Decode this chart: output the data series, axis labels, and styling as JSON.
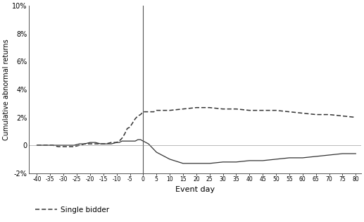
{
  "xlabel": "Event day",
  "ylabel": "Cumulative abnormal returns",
  "ylim": [
    -0.02,
    0.1
  ],
  "yticks": [
    -0.02,
    0.0,
    0.02,
    0.04,
    0.06,
    0.08,
    0.1
  ],
  "ytick_labels": [
    "-2%",
    "0",
    "2%",
    "4%",
    "6%",
    "8%",
    "10%"
  ],
  "vline_x": 0,
  "background_color": "#ffffff",
  "legend_label_dashed": "Single bidder",
  "x_tick_pre": [
    -40,
    -35,
    -30,
    -25,
    -20,
    -15,
    -10,
    -5
  ],
  "x_tick_post": [
    5,
    10,
    15,
    20,
    25,
    30,
    35,
    40,
    45,
    50,
    55,
    60,
    65,
    70,
    75,
    80
  ],
  "single_bidder_x": [
    -40,
    -38,
    -36,
    -34,
    -32,
    -30,
    -28,
    -26,
    -24,
    -22,
    -20,
    -18,
    -16,
    -14,
    -12,
    -10,
    -9,
    -8,
    -7,
    -6,
    -5,
    -4,
    -3,
    -2,
    -1,
    0,
    1,
    2,
    3,
    4,
    5,
    10,
    15,
    20,
    25,
    30,
    35,
    40,
    45,
    50,
    55,
    60,
    65,
    70,
    75,
    80
  ],
  "single_bidder_y": [
    0.0,
    0.0,
    0.0,
    0.0,
    -0.001,
    -0.001,
    -0.001,
    -0.001,
    0.0,
    0.001,
    0.001,
    0.001,
    0.001,
    0.001,
    0.002,
    0.002,
    0.003,
    0.005,
    0.008,
    0.012,
    0.013,
    0.016,
    0.019,
    0.021,
    0.022,
    0.024,
    0.024,
    0.024,
    0.024,
    0.024,
    0.025,
    0.025,
    0.026,
    0.027,
    0.027,
    0.026,
    0.026,
    0.025,
    0.025,
    0.025,
    0.024,
    0.023,
    0.022,
    0.022,
    0.021,
    0.02
  ],
  "multiple_bidder_x": [
    -40,
    -38,
    -36,
    -34,
    -32,
    -30,
    -28,
    -26,
    -24,
    -22,
    -20,
    -18,
    -16,
    -14,
    -12,
    -10,
    -9,
    -8,
    -7,
    -6,
    -5,
    -4,
    -3,
    -2,
    -1,
    0,
    1,
    2,
    3,
    4,
    5,
    10,
    15,
    20,
    25,
    30,
    35,
    40,
    45,
    50,
    55,
    60,
    65,
    70,
    75,
    80
  ],
  "multiple_bidder_y": [
    0.0,
    0.0,
    0.0,
    0.0,
    0.0,
    0.0,
    0.0,
    0.0,
    0.001,
    0.001,
    0.002,
    0.002,
    0.001,
    0.001,
    0.001,
    0.002,
    0.002,
    0.003,
    0.003,
    0.003,
    0.003,
    0.003,
    0.003,
    0.004,
    0.004,
    0.003,
    0.002,
    0.001,
    -0.001,
    -0.003,
    -0.005,
    -0.01,
    -0.013,
    -0.013,
    -0.013,
    -0.012,
    -0.012,
    -0.011,
    -0.011,
    -0.01,
    -0.009,
    -0.009,
    -0.008,
    -0.007,
    -0.006,
    -0.006
  ],
  "line_color": "#333333",
  "figsize": [
    5.17,
    3.15
  ],
  "dpi": 100
}
